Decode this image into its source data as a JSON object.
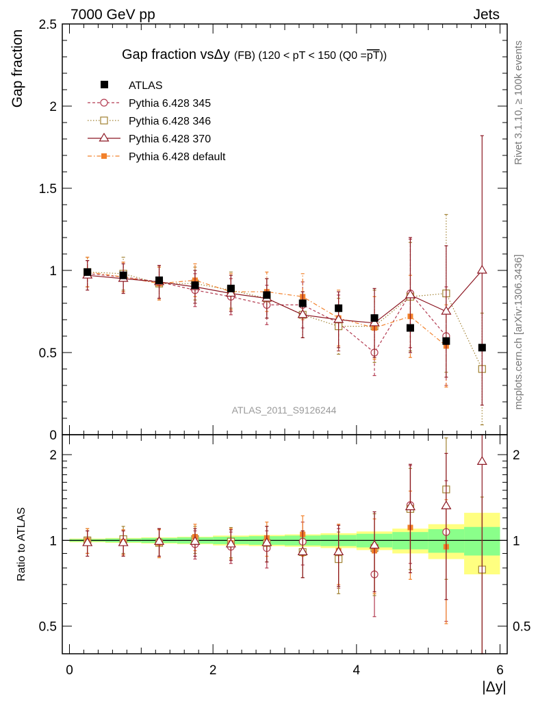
{
  "header": {
    "energy_label": "7000 GeV pp",
    "process_label": "Jets"
  },
  "side_labels": {
    "rivet": "Rivet 3.1.10, ≥ 100k events",
    "source": "mcplots.cern.ch [arXiv:1306.3436]"
  },
  "colors": {
    "atlas": "#000000",
    "p345": "#b2394f",
    "p346": "#a08030",
    "p370": "#8b1520",
    "pdef": "#f2802a",
    "band_inner": "#8aff8a",
    "band_outer": "#ffff80",
    "watermark": "#999999"
  },
  "chart_data": [
    {
      "type": "scatter",
      "name": "main-panel",
      "title_main": "Gap fraction vs",
      "title_delta": "Δy",
      "title_suffix": "(FB) (120 < pT < 150 (Q0 =",
      "title_overline": "pT",
      "title_close": "))",
      "ylabel": "Gap fraction",
      "watermark": "ATLAS_2011_S9126244",
      "xlim": [
        -0.1,
        6.1
      ],
      "ylim": [
        0,
        2.5
      ],
      "yticks": [
        {
          "v": 0,
          "label": "0"
        },
        {
          "v": 0.5,
          "label": "0.5"
        },
        {
          "v": 1,
          "label": "1"
        },
        {
          "v": 1.5,
          "label": "1.5"
        },
        {
          "v": 2,
          "label": "2"
        },
        {
          "v": 2.5,
          "label": "2.5"
        }
      ],
      "x": [
        0.25,
        0.75,
        1.25,
        1.75,
        2.25,
        2.75,
        3.25,
        3.75,
        4.25,
        4.75,
        5.25,
        5.75
      ],
      "series": [
        {
          "key": "atlas",
          "name": "ATLAS",
          "marker": "filled-square",
          "line": "none",
          "values": [
            0.99,
            0.97,
            0.94,
            0.91,
            0.89,
            0.85,
            0.8,
            0.77,
            0.71,
            0.65,
            0.57,
            0.53
          ],
          "errors": [
            0.02,
            0.02,
            0.02,
            0.02,
            0.02,
            0.02,
            0.02,
            0.02,
            0.02,
            0.02,
            0.02,
            0.02
          ]
        },
        {
          "key": "p345",
          "name": "Pythia 6.428 345",
          "marker": "open-circle",
          "line": "dashed",
          "values": [
            0.98,
            0.96,
            0.93,
            0.88,
            0.84,
            0.79,
            0.79,
            0.68,
            0.5,
            0.86,
            0.6,
            null
          ],
          "errors": [
            0.08,
            0.09,
            0.1,
            0.1,
            0.11,
            0.12,
            0.14,
            0.17,
            0.14,
            0.33,
            0.3,
            null
          ]
        },
        {
          "key": "p346",
          "name": "Pythia 6.428 346",
          "marker": "open-square",
          "line": "dotted",
          "values": [
            0.99,
            0.98,
            0.92,
            0.92,
            0.88,
            0.83,
            0.73,
            0.66,
            0.66,
            0.84,
            0.86,
            0.4
          ],
          "errors": [
            0.09,
            0.1,
            0.1,
            0.1,
            0.11,
            0.12,
            0.14,
            0.17,
            0.22,
            0.33,
            0.48,
            0.34
          ]
        },
        {
          "key": "p370",
          "name": "Pythia 6.428 370",
          "marker": "open-triangle",
          "line": "solid",
          "values": [
            0.97,
            0.95,
            0.93,
            0.9,
            0.86,
            0.83,
            0.73,
            0.7,
            0.68,
            0.85,
            0.75,
            1.0
          ],
          "errors": [
            0.09,
            0.09,
            0.1,
            0.1,
            0.11,
            0.12,
            0.14,
            0.17,
            0.21,
            0.35,
            0.4,
            0.82
          ]
        },
        {
          "key": "pdef",
          "name": "Pythia 6.428 default",
          "marker": "filled-square-small",
          "line": "dashdot",
          "values": [
            0.99,
            0.96,
            0.92,
            0.94,
            0.87,
            0.87,
            0.84,
            0.71,
            0.65,
            0.72,
            0.54,
            null
          ],
          "errors": [
            0.09,
            0.09,
            0.1,
            0.1,
            0.11,
            0.12,
            0.14,
            0.17,
            0.19,
            0.25,
            0.25,
            null
          ]
        }
      ]
    },
    {
      "type": "scatter",
      "name": "ratio-panel",
      "ylabel": "Ratio to ATLAS",
      "xlabel": "|Δy|",
      "yscale": "log",
      "xlim": [
        -0.1,
        6.1
      ],
      "ylim": [
        0.4,
        2.35
      ],
      "xticks": [
        {
          "v": 0,
          "label": "0"
        },
        {
          "v": 2,
          "label": "2"
        },
        {
          "v": 4,
          "label": "4"
        },
        {
          "v": 6,
          "label": "6"
        }
      ],
      "yticks": [
        {
          "v": 0.5,
          "label": "0.5"
        },
        {
          "v": 1,
          "label": "1"
        },
        {
          "v": 2,
          "label": "2"
        }
      ],
      "bins": [
        [
          0,
          0.5
        ],
        [
          0.5,
          1
        ],
        [
          1,
          1.5
        ],
        [
          1.5,
          2
        ],
        [
          2,
          2.5
        ],
        [
          2.5,
          3
        ],
        [
          3,
          3.5
        ],
        [
          3.5,
          4
        ],
        [
          4,
          4.5
        ],
        [
          4.5,
          5
        ],
        [
          5,
          5.5
        ],
        [
          5.5,
          6
        ]
      ],
      "band_inner": [
        [
          0.99,
          1.01
        ],
        [
          0.985,
          1.015
        ],
        [
          0.98,
          1.02
        ],
        [
          0.975,
          1.025
        ],
        [
          0.97,
          1.03
        ],
        [
          0.965,
          1.035
        ],
        [
          0.96,
          1.04
        ],
        [
          0.955,
          1.045
        ],
        [
          0.945,
          1.055
        ],
        [
          0.93,
          1.07
        ],
        [
          0.905,
          1.095
        ],
        [
          0.885,
          1.115
        ]
      ],
      "band_outer": [
        [
          0.985,
          1.015
        ],
        [
          0.98,
          1.02
        ],
        [
          0.975,
          1.025
        ],
        [
          0.97,
          1.03
        ],
        [
          0.96,
          1.04
        ],
        [
          0.955,
          1.045
        ],
        [
          0.95,
          1.05
        ],
        [
          0.94,
          1.06
        ],
        [
          0.925,
          1.075
        ],
        [
          0.9,
          1.1
        ],
        [
          0.86,
          1.14
        ],
        [
          0.76,
          1.25
        ]
      ],
      "x": [
        0.25,
        0.75,
        1.25,
        1.75,
        2.25,
        2.75,
        3.25,
        3.75,
        4.25,
        4.75,
        5.25,
        5.75
      ],
      "series": [
        {
          "key": "p345",
          "values": [
            0.99,
            0.99,
            0.99,
            0.97,
            0.95,
            0.94,
            0.99,
            0.89,
            0.76,
            1.33,
            1.07,
            null
          ],
          "errors": [
            0.09,
            0.1,
            0.11,
            0.11,
            0.12,
            0.14,
            0.17,
            0.21,
            0.22,
            0.5,
            0.55,
            null
          ]
        },
        {
          "key": "p346",
          "values": [
            1.0,
            1.01,
            0.98,
            1.01,
            0.99,
            0.98,
            0.91,
            0.86,
            0.94,
            1.29,
            1.51,
            0.79
          ],
          "errors": [
            0.1,
            0.11,
            0.11,
            0.11,
            0.12,
            0.14,
            0.17,
            0.21,
            0.3,
            0.5,
            0.78,
            0.63
          ]
        },
        {
          "key": "p370",
          "values": [
            0.98,
            0.98,
            0.99,
            0.99,
            0.97,
            0.98,
            0.91,
            0.91,
            0.96,
            1.31,
            1.32,
            1.89
          ],
          "errors": [
            0.1,
            0.1,
            0.11,
            0.11,
            0.12,
            0.14,
            0.17,
            0.22,
            0.3,
            0.54,
            0.7,
            1.55
          ]
        },
        {
          "key": "pdef",
          "values": [
            1.0,
            0.99,
            0.98,
            1.03,
            0.98,
            1.02,
            1.05,
            0.92,
            0.92,
            1.11,
            0.95,
            null
          ],
          "errors": [
            0.1,
            0.1,
            0.11,
            0.11,
            0.12,
            0.14,
            0.17,
            0.22,
            0.27,
            0.38,
            0.44,
            null
          ]
        }
      ]
    }
  ]
}
